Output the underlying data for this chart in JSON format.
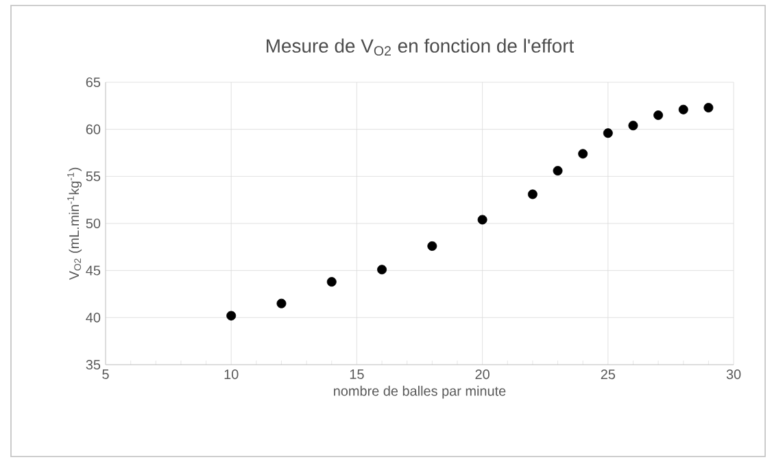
{
  "chart_data": {
    "type": "scatter",
    "title": "Mesure de V$_{O2}$ en fonction de l'effort",
    "xlabel": "nombre de balles par minute",
    "ylabel": "V$_{O2}$ (mL.min$^{-1}$kg$^{-1}$)",
    "xlim": [
      5,
      30
    ],
    "xticks": [
      5,
      10,
      15,
      20,
      25,
      30
    ],
    "ylim": [
      35,
      65
    ],
    "yticks": [
      35,
      40,
      45,
      50,
      55,
      60,
      65
    ],
    "grid": true,
    "marker": "circle",
    "series": [
      {
        "color": "#000000",
        "x": [
          10,
          12,
          14,
          16,
          18,
          20,
          22,
          23,
          24,
          25,
          26,
          27,
          28,
          29
        ],
        "values": [
          40.2,
          41.5,
          43.8,
          45.1,
          47.6,
          50.4,
          53.1,
          55.6,
          57.4,
          59.6,
          60.4,
          61.5,
          62.1,
          62.3
        ]
      }
    ]
  }
}
